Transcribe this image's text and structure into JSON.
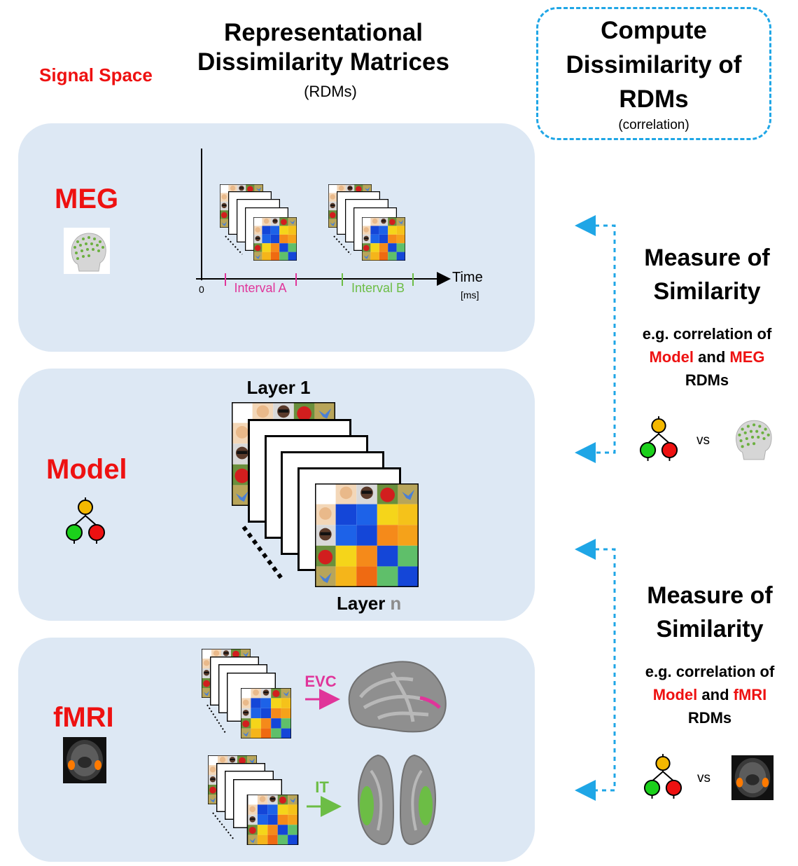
{
  "header": {
    "signal_space": "Signal Space",
    "rdm_title_line1": "Representational",
    "rdm_title_line2": "Dissimilarity Matrices",
    "rdm_subtitle": "(RDMs)",
    "compute_line1": "Compute",
    "compute_line2": "Dissimilarity of",
    "compute_line3": "RDMs",
    "compute_subtitle": "(correlation)"
  },
  "meg": {
    "label": "MEG",
    "axis_origin": "0",
    "axis_time": "Time",
    "axis_unit": "[ms]",
    "interval_a": "Interval A",
    "interval_b": "Interval B"
  },
  "model": {
    "label": "Model",
    "layer1_label": "Layer 1",
    "layern_prefix": "Layer",
    "layern_suffix": "n"
  },
  "fmri": {
    "label": "fMRI",
    "evc_label": "EVC",
    "it_label": "IT"
  },
  "similarity_meg": {
    "title_line1": "Measure of",
    "title_line2": "Similarity",
    "text_line1": "e.g. correlation of",
    "text_model": "Model",
    "text_and": "and",
    "text_modality": "MEG",
    "text_line3": "RDMs",
    "vs": "vs"
  },
  "similarity_fmri": {
    "title_line1": "Measure of",
    "title_line2": "Similarity",
    "text_line1": "e.g. correlation of",
    "text_model": "Model",
    "text_and": "and",
    "text_modality": "fMRI",
    "text_line3": "RDMs",
    "vs": "vs"
  },
  "rdm_zero": "0",
  "colors": {
    "accent_red": "#ee1111",
    "interval_a": "#e0359a",
    "interval_b": "#6cbd45",
    "arrow_blue": "#1fa6e6",
    "panel_bg": "#dde8f4"
  }
}
